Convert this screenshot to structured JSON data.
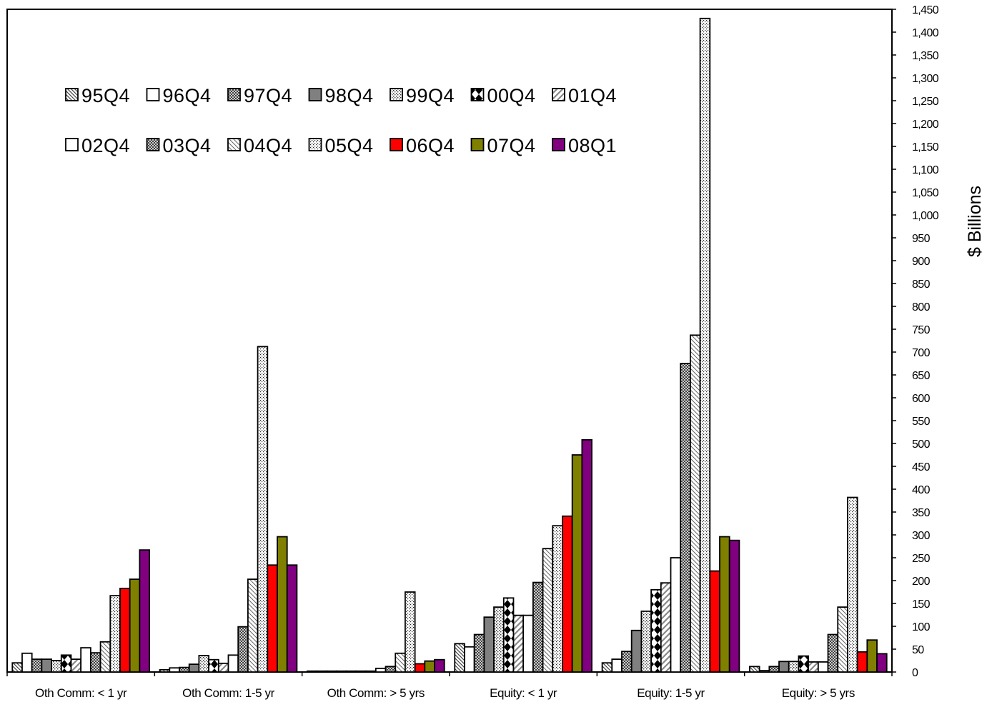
{
  "chart_data": {
    "type": "bar",
    "title": "",
    "xlabel": "",
    "ylabel": "$ Billions",
    "ylim": [
      0,
      1450
    ],
    "ytick_step": 50,
    "y_axis_side": "right",
    "grid": false,
    "legend": "top-left, inside plot, two rows",
    "categories": [
      "Oth Comm: < 1 yr",
      "Oth Comm: 1-5 yr",
      "Oth Comm: > 5 yrs",
      "Equity: < 1 yr",
      "Equity: 1-5 yr",
      "Equity: > 5 yrs"
    ],
    "yticks": [
      "0",
      "50",
      "100",
      "150",
      "200",
      "250",
      "300",
      "350",
      "400",
      "450",
      "500",
      "550",
      "600",
      "650",
      "700",
      "750",
      "800",
      "850",
      "900",
      "950",
      "1,000",
      "1,050",
      "1,100",
      "1,150",
      "1,200",
      "1,250",
      "1,300",
      "1,350",
      "1,400",
      "1,450"
    ],
    "series": [
      {
        "name": "95Q4",
        "pattern": "diag-left",
        "values": [
          20,
          5,
          2,
          62,
          20,
          12
        ]
      },
      {
        "name": "96Q4",
        "pattern": "white",
        "values": [
          41,
          9,
          2,
          55,
          28,
          3
        ]
      },
      {
        "name": "97Q4",
        "pattern": "crosshatch",
        "values": [
          28,
          10,
          2,
          82,
          45,
          12
        ]
      },
      {
        "name": "98Q4",
        "pattern": "gray",
        "values": [
          28,
          17,
          2,
          120,
          91,
          23
        ]
      },
      {
        "name": "99Q4",
        "pattern": "dots",
        "values": [
          25,
          36,
          2,
          142,
          133,
          23
        ]
      },
      {
        "name": "00Q4",
        "pattern": "diamonds",
        "values": [
          37,
          27,
          2,
          162,
          180,
          35
        ]
      },
      {
        "name": "01Q4",
        "pattern": "diag-wide",
        "values": [
          28,
          19,
          2,
          124,
          195,
          22
        ]
      },
      {
        "name": "02Q4",
        "pattern": "white",
        "values": [
          53,
          37,
          8,
          124,
          250,
          22
        ]
      },
      {
        "name": "03Q4",
        "pattern": "crosshatch",
        "values": [
          42,
          99,
          12,
          196,
          675,
          82
        ]
      },
      {
        "name": "04Q4",
        "pattern": "diag-fine",
        "values": [
          66,
          203,
          41,
          270,
          737,
          142
        ]
      },
      {
        "name": "05Q4",
        "pattern": "dots-fine",
        "values": [
          167,
          712,
          175,
          320,
          1430,
          382
        ]
      },
      {
        "name": "06Q4",
        "pattern": "red",
        "values": [
          183,
          234,
          18,
          341,
          221,
          44
        ]
      },
      {
        "name": "07Q4",
        "pattern": "olive",
        "values": [
          203,
          296,
          24,
          475,
          296,
          70
        ]
      },
      {
        "name": "08Q1",
        "pattern": "purple",
        "values": [
          267,
          234,
          27,
          508,
          288,
          40
        ]
      }
    ],
    "colors": {
      "axis": "#000000",
      "gray": "#808080",
      "red": "#ff0000",
      "olive": "#808000",
      "purple": "#800080",
      "pattern_ink": "#555555"
    }
  }
}
